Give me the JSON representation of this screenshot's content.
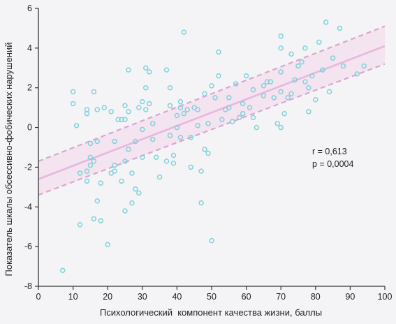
{
  "chart_data": {
    "type": "scatter",
    "title": "",
    "xlabel": "Психологический  компонент качества жизни, баллы",
    "ylabel": "Показатель шкалы обсессивно-фобических нарушений",
    "xlim": [
      0,
      100
    ],
    "ylim": [
      -8,
      6
    ],
    "xticks": [
      0,
      10,
      20,
      30,
      40,
      50,
      60,
      70,
      80,
      90,
      100
    ],
    "yticks": [
      -8,
      -6,
      -4,
      -2,
      0,
      2,
      4,
      6
    ],
    "grid": false,
    "annotations": [
      "r = 0,613",
      "p = 0,0004"
    ],
    "regression": {
      "x": [
        0,
        100
      ],
      "y": [
        -2.6,
        4.1
      ]
    },
    "confidence_band_upper": {
      "x": [
        0,
        100
      ],
      "y": [
        -1.7,
        5.1
      ]
    },
    "confidence_band_lower": {
      "x": [
        0,
        100
      ],
      "y": [
        -3.4,
        3.2
      ]
    },
    "points": [
      [
        7,
        -7.2
      ],
      [
        10,
        1.8
      ],
      [
        10,
        1.2
      ],
      [
        11,
        0.1
      ],
      [
        12,
        -4.9
      ],
      [
        12,
        -2.3
      ],
      [
        14,
        -2.2
      ],
      [
        14,
        0.7
      ],
      [
        14,
        0.9
      ],
      [
        14,
        -2.7
      ],
      [
        15,
        -1.9
      ],
      [
        15,
        -1.5
      ],
      [
        15,
        -0.8
      ],
      [
        16,
        1.8
      ],
      [
        16,
        -1.7
      ],
      [
        16,
        -4.6
      ],
      [
        17,
        -0.7
      ],
      [
        17,
        0.9
      ],
      [
        17,
        -3.7
      ],
      [
        18,
        -2.8
      ],
      [
        18,
        -4.7
      ],
      [
        19,
        1.0
      ],
      [
        20,
        -5.9
      ],
      [
        21,
        0.8
      ],
      [
        21,
        -2.3
      ],
      [
        22,
        -2.2
      ],
      [
        22,
        -0.7
      ],
      [
        22,
        -1.9
      ],
      [
        23,
        0.4
      ],
      [
        24,
        -2.7
      ],
      [
        24,
        0.4
      ],
      [
        25,
        -4.2
      ],
      [
        25,
        1.1
      ],
      [
        25,
        -1.7
      ],
      [
        25,
        0.4
      ],
      [
        26,
        2.9
      ],
      [
        26,
        -1.1
      ],
      [
        26,
        0.8
      ],
      [
        27,
        -3.8
      ],
      [
        27,
        -2.3
      ],
      [
        28,
        -0.7
      ],
      [
        28,
        -3.1
      ],
      [
        29,
        -3.3
      ],
      [
        29,
        1.0
      ],
      [
        30,
        -0.1
      ],
      [
        30,
        1.3
      ],
      [
        30,
        -1.5
      ],
      [
        31,
        3.0
      ],
      [
        31,
        2.0
      ],
      [
        31,
        0.9
      ],
      [
        32,
        2.8
      ],
      [
        32,
        1.2
      ],
      [
        33,
        0.2
      ],
      [
        33,
        -0.6
      ],
      [
        34,
        -1.5
      ],
      [
        35,
        -2.5
      ],
      [
        37,
        2.9
      ],
      [
        37,
        -1.7
      ],
      [
        38,
        2.0
      ],
      [
        38,
        1.1
      ],
      [
        38,
        -0.4
      ],
      [
        39,
        -1.8
      ],
      [
        39,
        -1.4
      ],
      [
        40,
        0.6
      ],
      [
        40,
        0.0
      ],
      [
        41,
        -0.5
      ],
      [
        41,
        1.0
      ],
      [
        41,
        1.3
      ],
      [
        42,
        4.8
      ],
      [
        42,
        0.7
      ],
      [
        43,
        0.9
      ],
      [
        44,
        -0.5
      ],
      [
        44,
        -2.0
      ],
      [
        45,
        1.0
      ],
      [
        46,
        0.9
      ],
      [
        46,
        0.1
      ],
      [
        47,
        -3.8
      ],
      [
        47,
        -2.2
      ],
      [
        48,
        1.7
      ],
      [
        48,
        -1.1
      ],
      [
        49,
        0.2
      ],
      [
        49,
        -1.3
      ],
      [
        50,
        -5.7
      ],
      [
        50,
        2.1
      ],
      [
        51,
        1.5
      ],
      [
        52,
        2.6
      ],
      [
        52,
        3.8
      ],
      [
        53,
        0.4
      ],
      [
        54,
        0.9
      ],
      [
        55,
        1.5
      ],
      [
        55,
        1.0
      ],
      [
        56,
        0.3
      ],
      [
        57,
        2.2
      ],
      [
        58,
        0.5
      ],
      [
        59,
        1.2
      ],
      [
        59,
        0.7
      ],
      [
        60,
        2.6
      ],
      [
        61,
        1.0
      ],
      [
        62,
        1.9
      ],
      [
        62,
        0.5
      ],
      [
        63,
        0.0
      ],
      [
        65,
        1.6
      ],
      [
        65,
        2.1
      ],
      [
        66,
        2.3
      ],
      [
        67,
        2.3
      ],
      [
        68,
        1.5
      ],
      [
        69,
        0.2
      ],
      [
        70,
        4.6
      ],
      [
        70,
        4.0
      ],
      [
        70,
        2.8
      ],
      [
        70,
        1.8
      ],
      [
        70,
        0.0
      ],
      [
        71,
        0.7
      ],
      [
        72,
        1.5
      ],
      [
        73,
        3.7
      ],
      [
        73,
        1.7
      ],
      [
        74,
        2.4
      ],
      [
        75,
        3.1
      ],
      [
        76,
        3.3
      ],
      [
        77,
        4.0
      ],
      [
        77,
        2.3
      ],
      [
        78,
        2.0
      ],
      [
        78,
        0.8
      ],
      [
        79,
        2.6
      ],
      [
        80,
        1.4
      ],
      [
        81,
        4.3
      ],
      [
        82,
        2.9
      ],
      [
        83,
        5.3
      ],
      [
        84,
        1.8
      ],
      [
        85,
        3.5
      ],
      [
        87,
        5.0
      ],
      [
        88,
        3.1
      ],
      [
        92,
        2.7
      ],
      [
        94,
        3.1
      ]
    ]
  }
}
